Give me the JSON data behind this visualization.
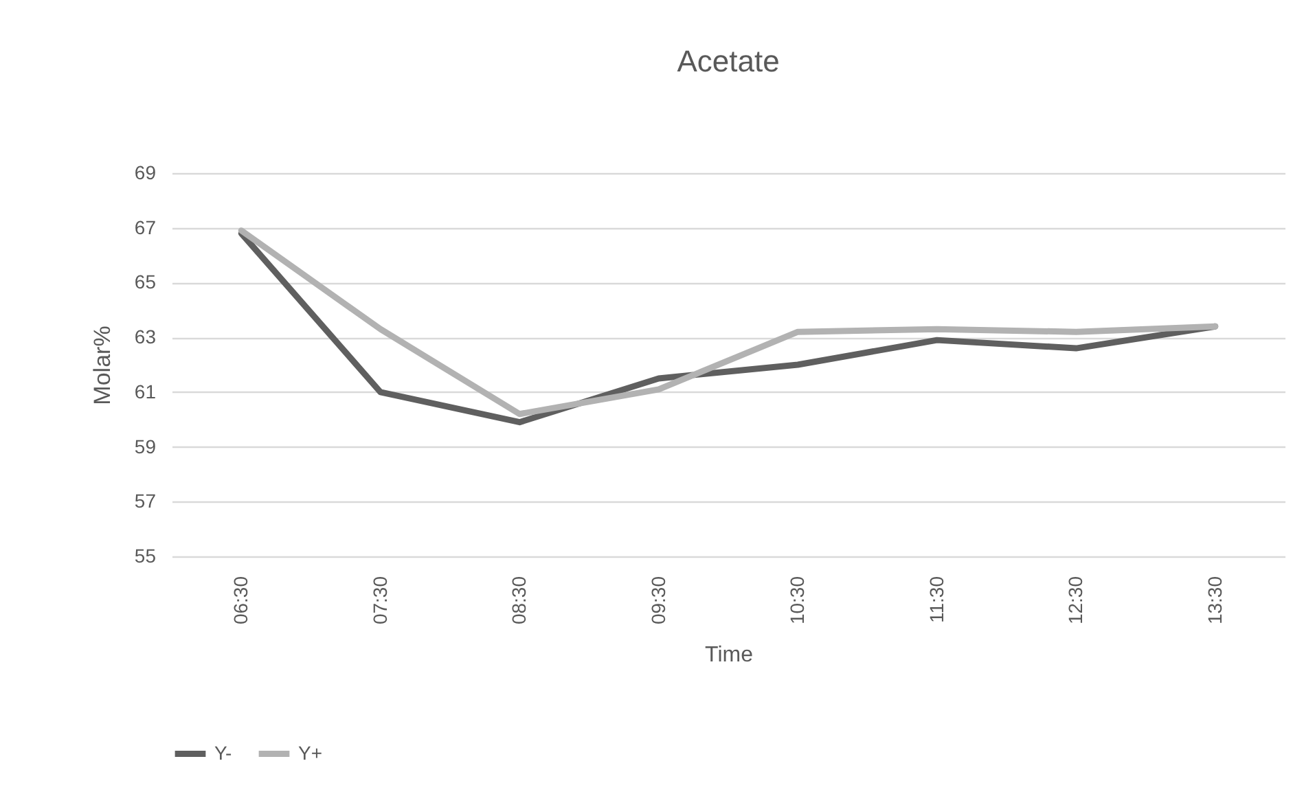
{
  "chart_data": {
    "type": "line",
    "title": "Acetate",
    "xlabel": "Time",
    "ylabel": "Molar%",
    "categories": [
      "06:30",
      "07:30",
      "08:30",
      "09:30",
      "10:30",
      "11:30",
      "12:30",
      "13:30"
    ],
    "series": [
      {
        "name": "Y-",
        "color": "#5f5f5f",
        "values": [
          66.8,
          61.0,
          59.9,
          61.5,
          62.0,
          62.9,
          62.6,
          63.4
        ]
      },
      {
        "name": "Y+",
        "color": "#b2b2b2",
        "values": [
          66.9,
          63.3,
          60.2,
          61.1,
          63.2,
          63.3,
          63.2,
          63.4
        ]
      }
    ],
    "ylim": [
      55,
      69
    ],
    "yticks": [
      55,
      57,
      59,
      61,
      63,
      65,
      67,
      69
    ],
    "grid": "y",
    "legend": "bottom",
    "marker": "none",
    "line_style": "solid"
  }
}
